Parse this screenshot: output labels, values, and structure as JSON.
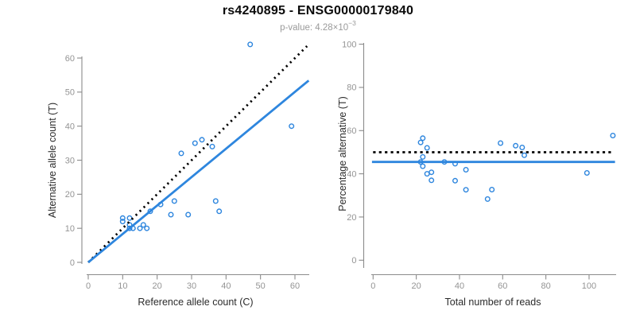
{
  "header": {
    "title": "rs4240895 - ENSG00000179840",
    "pvalue_prefix": "p-value: 4.28",
    "pvalue_base": "×10",
    "pvalue_exp": "−3"
  },
  "colors": {
    "accent_blue": "#2E86DE",
    "line_black": "#000000",
    "axis_gray": "#8b8b8b",
    "tick_text_gray": "#949494",
    "label_dark": "#2b2b2b",
    "subtitle_gray": "#9a9a9a"
  },
  "chart_data": [
    {
      "type": "scatter",
      "panel": "left",
      "xlabel": "Reference allele count (C)",
      "ylabel": "Alternative allele count (T)",
      "xlim": [
        0,
        63
      ],
      "ylim": [
        0,
        64
      ],
      "xticks": [
        0,
        10,
        20,
        30,
        40,
        50,
        60
      ],
      "yticks": [
        0,
        10,
        20,
        30,
        40,
        50,
        60
      ],
      "grid": false,
      "legend": "none",
      "points": [
        [
          10,
          12
        ],
        [
          10,
          13
        ],
        [
          12,
          10
        ],
        [
          12,
          11
        ],
        [
          12,
          13
        ],
        [
          13,
          10
        ],
        [
          15,
          10
        ],
        [
          16,
          11
        ],
        [
          17,
          10
        ],
        [
          18,
          15
        ],
        [
          21,
          17
        ],
        [
          24,
          14
        ],
        [
          25,
          18
        ],
        [
          27,
          32
        ],
        [
          29,
          14
        ],
        [
          31,
          35
        ],
        [
          33,
          36
        ],
        [
          36,
          34
        ],
        [
          37,
          18
        ],
        [
          38,
          15
        ],
        [
          47,
          64
        ],
        [
          59,
          40
        ]
      ],
      "lines": [
        {
          "name": "identity-line",
          "style": "dashed",
          "color": "#000000",
          "x1": 0,
          "y1": 0,
          "x2": 63.5,
          "y2": 63.5
        },
        {
          "name": "fit-line",
          "style": "solid",
          "color": "#2E86DE",
          "x1": 0,
          "y1": 0,
          "x2": 64,
          "y2": 53.4
        }
      ]
    },
    {
      "type": "scatter",
      "panel": "right",
      "xlabel": "Total number of reads",
      "ylabel": "Percentage alternative (T)",
      "xlim": [
        0,
        112
      ],
      "ylim": [
        0,
        100
      ],
      "xticks": [
        0,
        20,
        40,
        60,
        80,
        100
      ],
      "yticks": [
        0,
        20,
        40,
        60,
        80,
        100
      ],
      "grid": false,
      "legend": "none",
      "points": [
        [
          22,
          54.5
        ],
        [
          23,
          56.5
        ],
        [
          22,
          45.5
        ],
        [
          23,
          47.8
        ],
        [
          25,
          52.0
        ],
        [
          23,
          43.5
        ],
        [
          25,
          40.0
        ],
        [
          27,
          40.7
        ],
        [
          27,
          37.0
        ],
        [
          33,
          45.5
        ],
        [
          38,
          44.7
        ],
        [
          38,
          36.8
        ],
        [
          43,
          41.9
        ],
        [
          59,
          54.2
        ],
        [
          43,
          32.6
        ],
        [
          66,
          53.0
        ],
        [
          69,
          52.2
        ],
        [
          70,
          48.6
        ],
        [
          55,
          32.7
        ],
        [
          53,
          28.3
        ],
        [
          111,
          57.7
        ],
        [
          99,
          40.4
        ]
      ],
      "lines": [
        {
          "name": "expected-50pct-line",
          "style": "dotted",
          "color": "#000000",
          "x1": 0,
          "y1": 50,
          "x2": 111.5,
          "y2": 50
        },
        {
          "name": "mean-pct-line",
          "style": "solid",
          "color": "#2E86DE",
          "x1": -0.5,
          "y1": 45.5,
          "x2": 112,
          "y2": 45.5
        }
      ]
    }
  ]
}
